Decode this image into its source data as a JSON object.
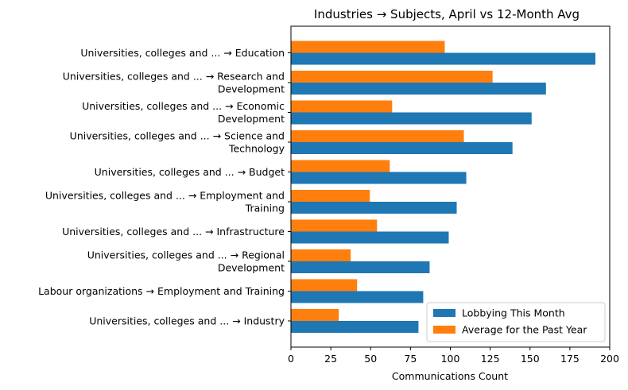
{
  "chart_data": {
    "type": "bar",
    "orientation": "horizontal",
    "title": "Industries → Subjects, April vs 12-Month Avg",
    "xlabel": "Communications Count",
    "ylabel": "",
    "xlim": [
      0,
      200
    ],
    "xticks": [
      "0",
      "25",
      "50",
      "75",
      "100",
      "125",
      "150",
      "175",
      "200"
    ],
    "grid": false,
    "legend_position": "lower-right",
    "categories": [
      [
        "Universities, colleges and ... → Education"
      ],
      [
        "Universities, colleges and ... → Research and",
        "Development"
      ],
      [
        "Universities, colleges and ... → Economic",
        "Development"
      ],
      [
        "Universities, colleges and ... → Science and",
        "Technology"
      ],
      [
        "Universities, colleges and ... → Budget"
      ],
      [
        "Universities, colleges and ... → Employment and",
        "Training"
      ],
      [
        "Universities, colleges and ... → Infrastructure"
      ],
      [
        "Universities, colleges and ... → Regional",
        "Development"
      ],
      [
        "Labour organizations → Employment and Training"
      ],
      [
        "Universities, colleges and ... → Industry"
      ]
    ],
    "series": [
      {
        "name": "Lobbying This Month",
        "color": "#1f77b4",
        "values": [
          191,
          160,
          151,
          139,
          110,
          104,
          99,
          87,
          83,
          80
        ]
      },
      {
        "name": "Average for the Past Year",
        "color": "#ff7f0e",
        "values": [
          96.5,
          126.5,
          63.5,
          108.5,
          62,
          49.5,
          54,
          37.5,
          41.5,
          30
        ]
      }
    ]
  }
}
